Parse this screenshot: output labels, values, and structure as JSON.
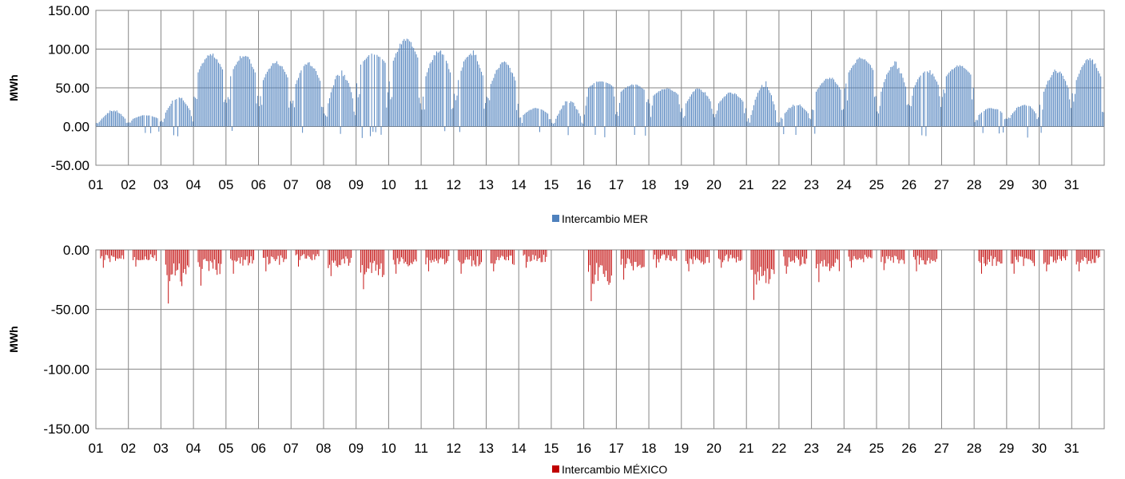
{
  "chart_data": [
    {
      "type": "bar",
      "ylabel": "MWh",
      "ylim": [
        -50,
        150
      ],
      "yticks": [
        "150.00",
        "100.00",
        "50.00",
        "0.00",
        "-50.00"
      ],
      "ytick_values": [
        150,
        100,
        50,
        0,
        -50
      ],
      "x_day_labels": [
        "01",
        "02",
        "03",
        "04",
        "05",
        "06",
        "07",
        "08",
        "09",
        "10",
        "11",
        "12",
        "13",
        "14",
        "15",
        "16",
        "17",
        "18",
        "19",
        "20",
        "21",
        "22",
        "23",
        "24",
        "25",
        "26",
        "27",
        "28",
        "29",
        "30",
        "31"
      ],
      "grid": "on",
      "legend_position": "bottom-center",
      "series": [
        {
          "name": "Intercambio MER",
          "color": "#4f81bd",
          "daily_profile": {
            "approx_daily_peak": [
              22,
              15,
              40,
              95,
              95,
              85,
              85,
              75,
              95,
              115,
              100,
              100,
              85,
              25,
              35,
              60,
              55,
              50,
              50,
              45,
              60,
              30,
              65,
              90,
              85,
              75,
              80,
              25,
              30,
              75,
              90
            ],
            "approx_daily_offpeak": [
              8,
              10,
              18,
              70,
              65,
              60,
              55,
              30,
              80,
              85,
              65,
              60,
              55,
              15,
              10,
              50,
              45,
              40,
              30,
              30,
              15,
              15,
              45,
              70,
              45,
              50,
              65,
              15,
              15,
              45,
              60
            ],
            "min_observed": -17,
            "max_observed": 118
          }
        }
      ]
    },
    {
      "type": "bar",
      "ylabel": "MWh",
      "ylim": [
        -150,
        0
      ],
      "yticks": [
        "0.00",
        "-50.00",
        "-100.00",
        "-150.00"
      ],
      "ytick_values": [
        0,
        -50,
        -100,
        -150
      ],
      "x_day_labels": [
        "01",
        "02",
        "03",
        "04",
        "05",
        "06",
        "07",
        "08",
        "09",
        "10",
        "11",
        "12",
        "13",
        "14",
        "15",
        "16",
        "17",
        "18",
        "19",
        "20",
        "21",
        "22",
        "23",
        "24",
        "25",
        "26",
        "27",
        "28",
        "29",
        "30",
        "31"
      ],
      "grid": "on",
      "legend_position": "bottom-center",
      "series": [
        {
          "name": "Intercambio MÉXICO",
          "color": "#c00000",
          "daily_profile": {
            "approx_daily_min": [
              -15,
              -14,
              -45,
              -30,
              -20,
              -18,
              -14,
              -22,
              -33,
              -20,
              -18,
              -20,
              -18,
              -15,
              0,
              -43,
              -25,
              -15,
              -18,
              -15,
              -42,
              -20,
              -27,
              -15,
              -17,
              -18,
              0,
              -20,
              -20,
              -18,
              -18
            ],
            "active_days_note": "no exchange on days 15 and 27"
          }
        }
      ]
    }
  ]
}
